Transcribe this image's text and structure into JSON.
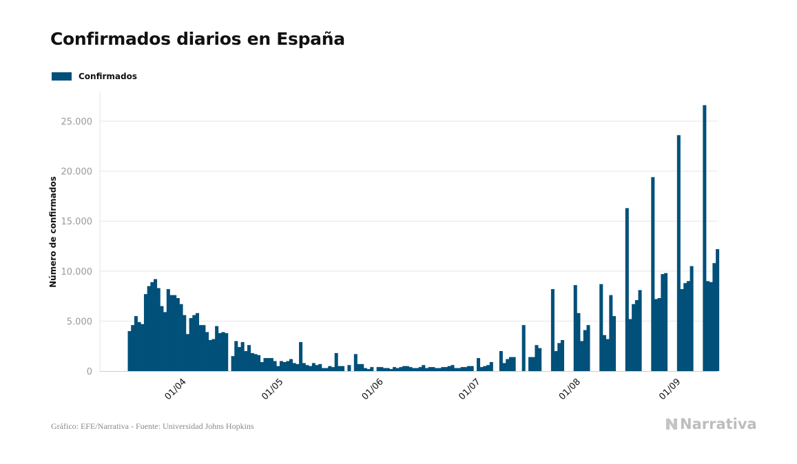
{
  "title": "Confirmados diarios en España",
  "footer": {
    "source": "Gráfico: EFE/Narrativa - Fuente: Universidad Johns Hopkins",
    "logo": "Narrativa"
  },
  "colors": {
    "bar": "#00507a",
    "grid": "#e6e6e6",
    "tick_label": "#999999",
    "text": "#111111"
  },
  "chart_data": {
    "type": "bar",
    "title": "Confirmados diarios en España",
    "ylabel": "Número de confirmados",
    "xlabel": "",
    "ylim": [
      0,
      27800
    ],
    "yticks": [
      0,
      5000,
      10000,
      15000,
      20000,
      25000
    ],
    "ytick_labels": [
      "0",
      "5.000",
      "10.000",
      "15.000",
      "20.000",
      "25.000"
    ],
    "xtick_labels": [
      "01/04",
      "01/05",
      "01/06",
      "01/07",
      "01/08",
      "01/09"
    ],
    "legend": {
      "position": "top-left",
      "entries": [
        "Confirmados"
      ]
    },
    "grid": true,
    "series": [
      {
        "name": "Confirmados",
        "start_date": "2020-03-16",
        "values": [
          4000,
          4600,
          5500,
          4900,
          4700,
          7700,
          8500,
          8900,
          9200,
          8300,
          6500,
          5900,
          8200,
          7600,
          7600,
          7300,
          6700,
          5600,
          3700,
          5300,
          5600,
          5800,
          4600,
          4600,
          3900,
          3100,
          3200,
          4500,
          3800,
          3900,
          3800,
          0,
          1500,
          3000,
          2400,
          2900,
          2000,
          2600,
          1800,
          1700,
          1600,
          900,
          1300,
          1300,
          1300,
          1000,
          500,
          1000,
          900,
          1000,
          1200,
          800,
          700,
          2900,
          800,
          600,
          500,
          800,
          600,
          700,
          300,
          300,
          500,
          400,
          1800,
          500,
          500,
          0,
          600,
          0,
          1700,
          700,
          700,
          300,
          200,
          400,
          0,
          400,
          400,
          300,
          300,
          200,
          400,
          300,
          400,
          500,
          500,
          400,
          300,
          300,
          400,
          600,
          300,
          400,
          400,
          300,
          300,
          400,
          400,
          500,
          600,
          300,
          300,
          400,
          400,
          500,
          500,
          0,
          1300,
          400,
          500,
          600,
          900,
          0,
          0,
          2000,
          800,
          1200,
          1400,
          1400,
          0,
          0,
          4600,
          0,
          1400,
          1400,
          2600,
          2300,
          0,
          0,
          0,
          8200,
          2000,
          2800,
          3100,
          0,
          0,
          0,
          8600,
          5800,
          3000,
          4100,
          4600,
          0,
          0,
          0,
          8700,
          3600,
          3200,
          7600,
          5500,
          0,
          0,
          0,
          16300,
          5200,
          6700,
          7100,
          8100,
          0,
          0,
          0,
          19400,
          7200,
          7300,
          9700,
          9800,
          0,
          0,
          0,
          23600,
          8200,
          8800,
          9000,
          10500,
          0,
          0,
          0,
          26600,
          9000,
          8900,
          10800,
          12200
        ]
      }
    ]
  }
}
